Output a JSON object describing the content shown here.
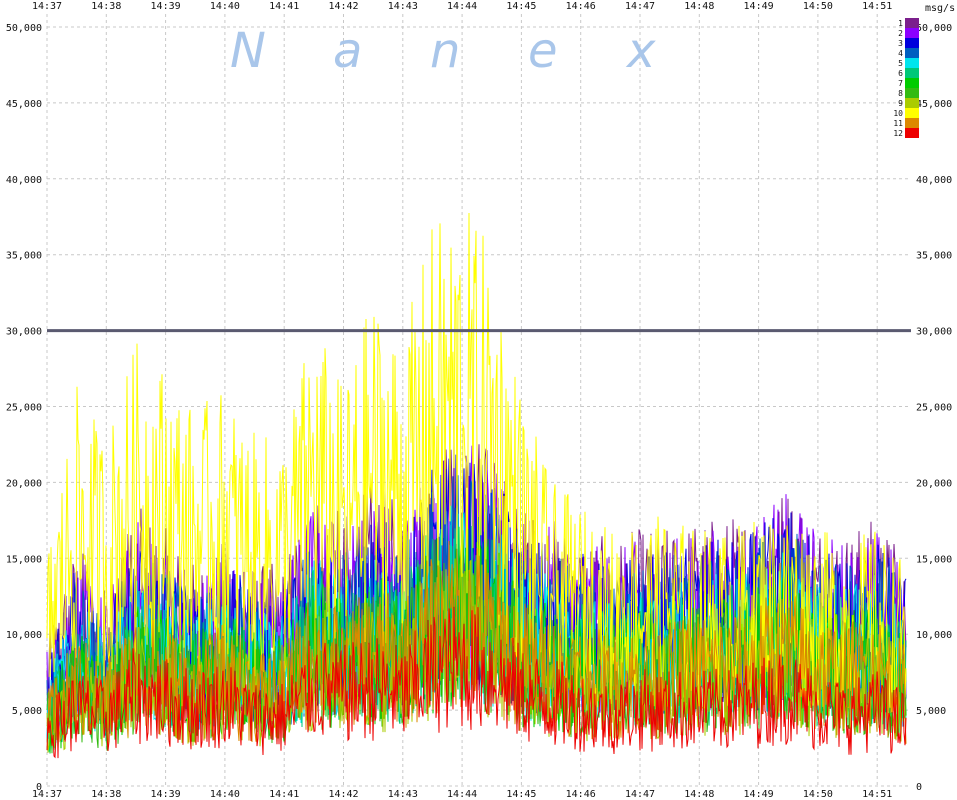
{
  "watermark_letters": [
    "N",
    "a",
    "n",
    "e",
    "x"
  ],
  "chart_data": {
    "type": "line",
    "title": "",
    "unit_label": "msg/s",
    "x_tick_labels": [
      "14:37",
      "14:38",
      "14:39",
      "14:40",
      "14:41",
      "14:42",
      "14:43",
      "14:44",
      "14:45",
      "14:46",
      "14:47",
      "14:48",
      "14:49",
      "14:50",
      "14:51"
    ],
    "y_tick_labels": [
      "0",
      "5,000",
      "10,000",
      "15,000",
      "20,000",
      "25,000",
      "30,000",
      "35,000",
      "40,000",
      "45,000",
      "50,000"
    ],
    "ylim": [
      0,
      50000
    ],
    "grid": true,
    "legend_position": "top-right",
    "reference_line": 30000,
    "series": [
      {
        "name": "1",
        "color": "#7b1f8c",
        "values": [
          6500,
          10500,
          8500,
          12000,
          11000,
          9500,
          10500,
          9500,
          9500,
          13000,
          11500,
          13000,
          12000,
          14500,
          15500,
          14500,
          12000,
          11500,
          11000,
          10500,
          11000,
          11000,
          11500,
          11500,
          12000,
          13000,
          11500,
          11000,
          11500,
          10000
        ]
      },
      {
        "name": "2",
        "color": "#8b00ff",
        "values": [
          6000,
          10000,
          8000,
          11500,
          10500,
          9000,
          10000,
          9000,
          9000,
          12500,
          11000,
          12500,
          11500,
          14000,
          15000,
          14000,
          11500,
          11000,
          10500,
          10000,
          10500,
          10500,
          11000,
          11000,
          11500,
          12500,
          11000,
          10500,
          11000,
          9500
        ]
      },
      {
        "name": "3",
        "color": "#0000dd",
        "values": [
          5500,
          9500,
          7500,
          10500,
          10000,
          8500,
          9500,
          8500,
          8500,
          11500,
          10500,
          11500,
          11000,
          13500,
          14500,
          13500,
          11000,
          10500,
          10000,
          9500,
          10000,
          10000,
          10500,
          10500,
          11000,
          12000,
          10500,
          10000,
          10500,
          9000
        ]
      },
      {
        "name": "4",
        "color": "#0060c0",
        "values": [
          5000,
          9000,
          7000,
          10000,
          9500,
          8000,
          9000,
          8000,
          8000,
          11000,
          10000,
          11000,
          10500,
          13000,
          14000,
          13000,
          10500,
          10000,
          9500,
          9000,
          9500,
          9500,
          10000,
          10000,
          10500,
          11500,
          10000,
          9500,
          10000,
          8500
        ]
      },
      {
        "name": "5",
        "color": "#00e5ee",
        "values": [
          4500,
          8000,
          6500,
          9000,
          8500,
          7500,
          8500,
          7500,
          7500,
          10000,
          9000,
          10000,
          9500,
          11500,
          12500,
          11500,
          9500,
          9000,
          8500,
          8000,
          8500,
          8500,
          9000,
          9000,
          9500,
          10000,
          9000,
          8500,
          9000,
          7500
        ]
      },
      {
        "name": "6",
        "color": "#00c878",
        "values": [
          4500,
          7500,
          6000,
          8500,
          8000,
          7000,
          8000,
          7000,
          7000,
          9500,
          8500,
          9500,
          9000,
          11000,
          12000,
          11000,
          9000,
          8500,
          8000,
          7500,
          8000,
          8000,
          8500,
          8500,
          9000,
          9500,
          8500,
          8000,
          8500,
          7000
        ]
      },
      {
        "name": "7",
        "color": "#00cc00",
        "values": [
          4000,
          7000,
          5500,
          8000,
          7500,
          6500,
          7500,
          6500,
          6500,
          9000,
          8000,
          9000,
          8500,
          10500,
          11500,
          10500,
          8500,
          8000,
          7500,
          7000,
          7500,
          7500,
          8000,
          8000,
          8500,
          9000,
          8000,
          7500,
          8000,
          6500
        ]
      },
      {
        "name": "8",
        "color": "#33bb11",
        "values": [
          4000,
          6500,
          5000,
          7500,
          7000,
          6000,
          7000,
          6000,
          6000,
          8500,
          7500,
          8500,
          8000,
          10000,
          11000,
          10000,
          8000,
          7500,
          7000,
          6500,
          7000,
          7000,
          7500,
          7500,
          8000,
          8500,
          7500,
          7000,
          7500,
          6000
        ]
      },
      {
        "name": "9",
        "color": "#aacc00",
        "values": [
          3500,
          6000,
          5000,
          7000,
          6500,
          5500,
          6500,
          5500,
          5500,
          8000,
          7000,
          8000,
          7500,
          9500,
          10500,
          9500,
          7500,
          7000,
          6500,
          6000,
          6500,
          6500,
          7000,
          7000,
          7500,
          8000,
          7000,
          6500,
          7000,
          5500
        ]
      },
      {
        "name": "10",
        "color": "#ffff00",
        "values": [
          10000,
          17000,
          15000,
          19000,
          18000,
          16000,
          17000,
          15000,
          15000,
          20000,
          17000,
          21000,
          19000,
          24000,
          25000,
          23000,
          17000,
          13000,
          12000,
          11000,
          11500,
          11500,
          11000,
          11000,
          11500,
          12000,
          11000,
          10500,
          11000,
          9500
        ]
      },
      {
        "name": "11",
        "color": "#dd8800",
        "values": [
          4000,
          6500,
          5500,
          7500,
          7000,
          6000,
          7000,
          6000,
          6000,
          8500,
          7500,
          8500,
          8000,
          10000,
          11000,
          10000,
          8000,
          7500,
          7000,
          6500,
          7000,
          7000,
          7500,
          7500,
          8000,
          8500,
          7500,
          7000,
          7500,
          6000
        ]
      },
      {
        "name": "12",
        "color": "#ee0000",
        "values": [
          3500,
          5000,
          4500,
          6000,
          5500,
          5000,
          5500,
          4500,
          4500,
          6500,
          6000,
          6500,
          6000,
          7500,
          8000,
          7500,
          6000,
          5500,
          5000,
          4500,
          5000,
          5000,
          5000,
          5000,
          5500,
          6000,
          5000,
          4500,
          5000,
          4000
        ]
      }
    ]
  }
}
